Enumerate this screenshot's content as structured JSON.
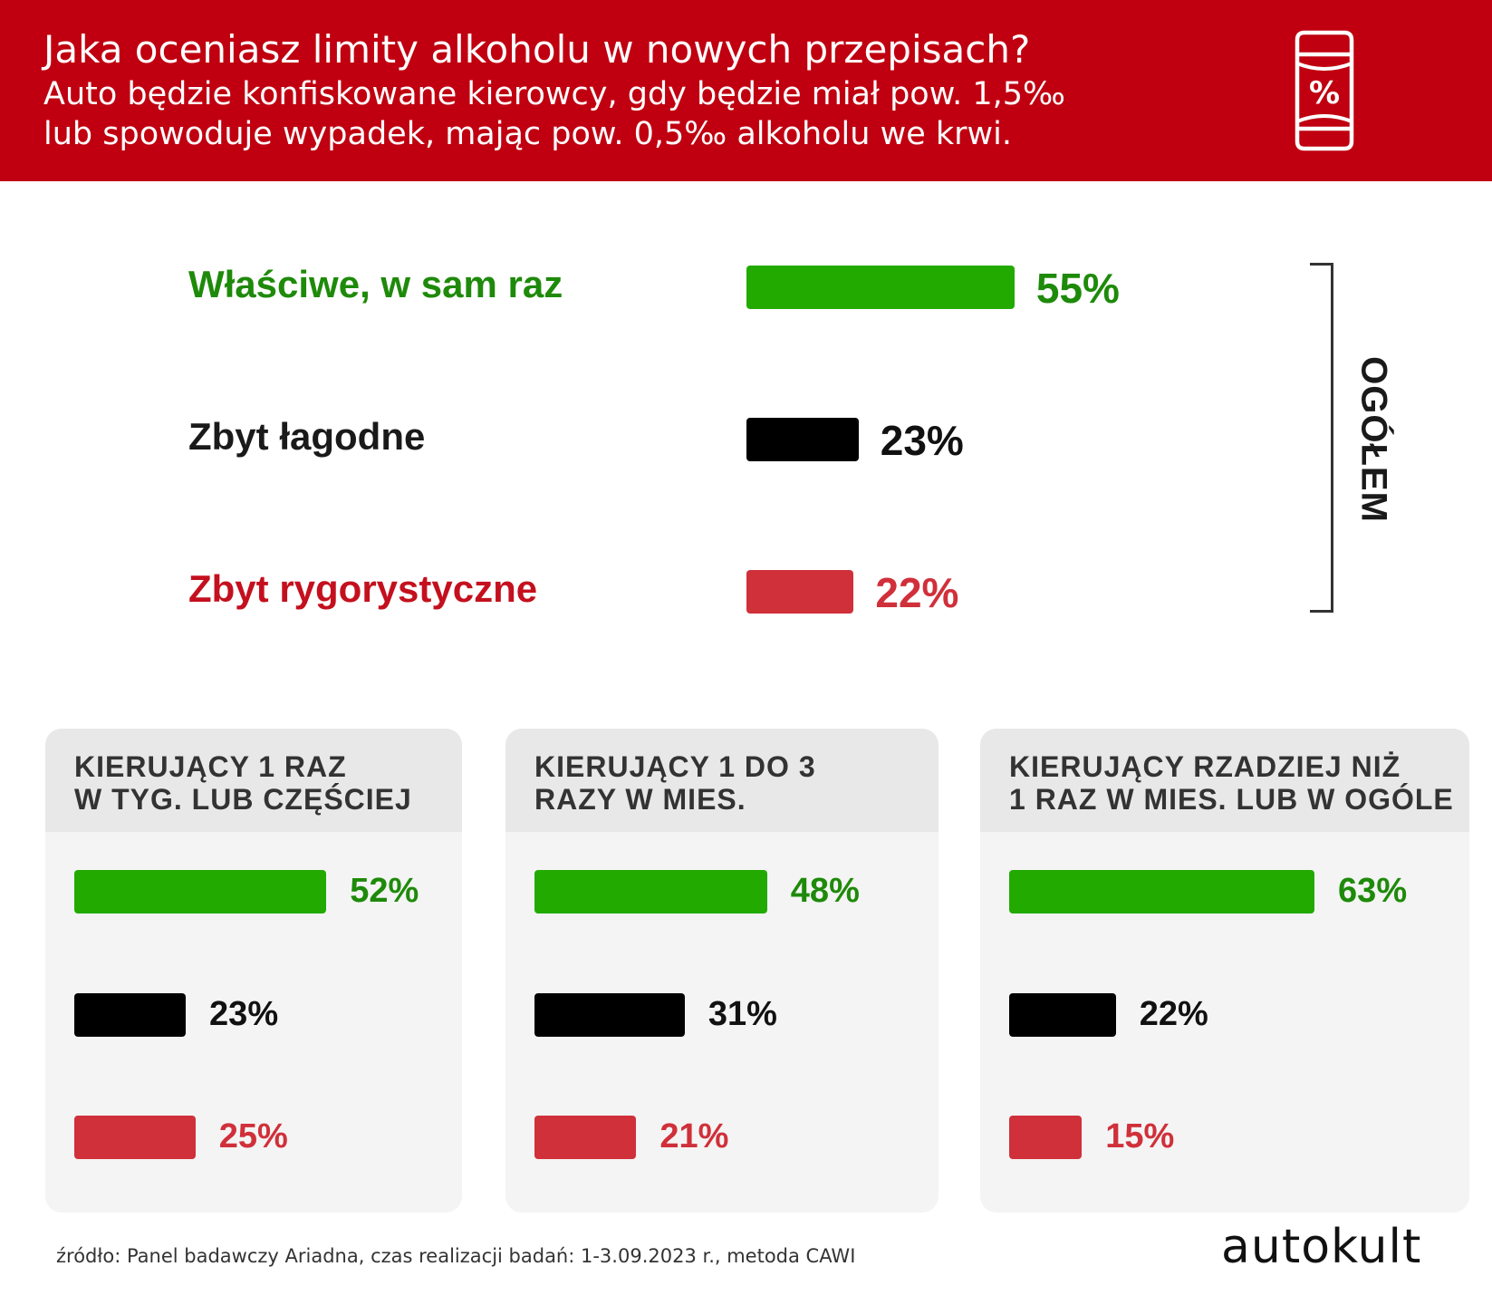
{
  "header": {
    "title": "Jaka oceniasz limity alkoholu w nowych przepisach?",
    "subtitle_line1": "Auto będzie konfiskowane kierowcy, gdy będzie miał pow. 1,5‰",
    "subtitle_line2": "lub spowoduje wypadek, mając pow. 0,5‰ alkoholu we krwi.",
    "icon": "percent-can-icon",
    "icon_symbol": "%"
  },
  "colors": {
    "header_bg": "#c00010",
    "green": "#22aa00",
    "green_text": "#1e8a0a",
    "black": "#000000",
    "red": "#d0303a",
    "red_text": "#c4101e"
  },
  "overall_label": "OGÓŁEM",
  "chart_data": [
    {
      "type": "bar",
      "title": "OGÓŁEM",
      "categories": [
        "Właściwe, w sam raz",
        "Zbyt łagodne",
        "Zbyt rygorystyczne"
      ],
      "values": [
        55,
        23,
        22
      ],
      "value_labels": [
        "55%",
        "23%",
        "22%"
      ],
      "colors": [
        "#22aa00",
        "#000000",
        "#d0303a"
      ],
      "orientation": "horizontal"
    },
    {
      "type": "bar",
      "title": "KIERUJĄCY 1 RAZ W TYG. LUB CZĘŚCIEJ",
      "title_lines": [
        "KIERUJĄCY 1 RAZ",
        "W TYG. LUB CZĘŚCIEJ"
      ],
      "categories": [
        "Właściwe, w sam raz",
        "Zbyt łagodne",
        "Zbyt rygorystyczne"
      ],
      "values": [
        52,
        23,
        25
      ],
      "value_labels": [
        "52%",
        "23%",
        "25%"
      ],
      "colors": [
        "#22aa00",
        "#000000",
        "#d0303a"
      ],
      "orientation": "horizontal"
    },
    {
      "type": "bar",
      "title": "KIERUJĄCY 1 DO 3 RAZY W MIES.",
      "title_lines": [
        "KIERUJĄCY 1 DO 3",
        "RAZY W MIES."
      ],
      "categories": [
        "Właściwe, w sam raz",
        "Zbyt łagodne",
        "Zbyt rygorystyczne"
      ],
      "values": [
        48,
        31,
        21
      ],
      "value_labels": [
        "48%",
        "31%",
        "21%"
      ],
      "colors": [
        "#22aa00",
        "#000000",
        "#d0303a"
      ],
      "orientation": "horizontal"
    },
    {
      "type": "bar",
      "title": "KIERUJĄCY RZADZIEJ NIŻ 1 RAZ W MIES. LUB W OGÓLE",
      "title_lines": [
        "KIERUJĄCY RZADZIEJ NIŻ",
        "1 RAZ W MIES. LUB W OGÓLE"
      ],
      "categories": [
        "Właściwe, w sam raz",
        "Zbyt łagodne",
        "Zbyt rygorystyczne"
      ],
      "values": [
        63,
        22,
        15
      ],
      "value_labels": [
        "63%",
        "22%",
        "15%"
      ],
      "colors": [
        "#22aa00",
        "#000000",
        "#d0303a"
      ],
      "orientation": "horizontal"
    }
  ],
  "footer": {
    "source": "źródło: Panel badawczy Ariadna, czas realizacji badań: 1-3.09.2023 r., metoda CAWI",
    "logo": "autokult"
  }
}
